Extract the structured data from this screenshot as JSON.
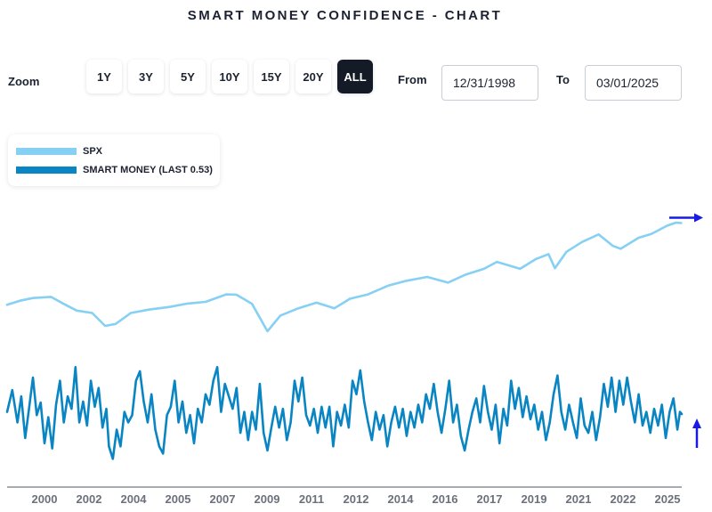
{
  "title": "SMART MONEY CONFIDENCE - CHART",
  "zoom": {
    "label": "Zoom",
    "buttons": [
      "1Y",
      "3Y",
      "5Y",
      "10Y",
      "15Y",
      "20Y",
      "ALL"
    ],
    "active": "ALL"
  },
  "range": {
    "from_label": "From",
    "from_value": "12/31/1998",
    "to_label": "To",
    "to_value": "03/01/2025"
  },
  "colors": {
    "spx": "#86d0f3",
    "smart_money": "#0a85c3",
    "arrow": "#1a1ae6",
    "axis": "#8a8f98"
  },
  "chart_data": {
    "type": "line",
    "title": "SMART MONEY CONFIDENCE - CHART",
    "legend": [
      "SPX",
      "SMART MONEY (LAST 0.53)"
    ],
    "legend_position": "top-left",
    "grid": false,
    "x_ticks": [
      "2000",
      "2002",
      "2004",
      "2005",
      "2007",
      "2009",
      "2011",
      "2012",
      "2014",
      "2016",
      "2017",
      "2019",
      "2021",
      "2022",
      "2025"
    ],
    "x_range": [
      "1998-12-31",
      "2025-03-01"
    ],
    "series": [
      {
        "name": "SPX",
        "axis": "upper",
        "points": [
          [
            1999.0,
            1230
          ],
          [
            1999.5,
            1330
          ],
          [
            2000.0,
            1400
          ],
          [
            2000.7,
            1430
          ],
          [
            2001.2,
            1250
          ],
          [
            2001.7,
            1100
          ],
          [
            2002.3,
            1050
          ],
          [
            2002.8,
            820
          ],
          [
            2003.2,
            850
          ],
          [
            2003.8,
            1050
          ],
          [
            2004.5,
            1120
          ],
          [
            2005.3,
            1180
          ],
          [
            2006.0,
            1260
          ],
          [
            2006.7,
            1300
          ],
          [
            2007.5,
            1500
          ],
          [
            2007.9,
            1490
          ],
          [
            2008.5,
            1250
          ],
          [
            2009.1,
            740
          ],
          [
            2009.6,
            1000
          ],
          [
            2010.3,
            1150
          ],
          [
            2011.0,
            1280
          ],
          [
            2011.7,
            1150
          ],
          [
            2012.3,
            1380
          ],
          [
            2013.0,
            1500
          ],
          [
            2013.8,
            1780
          ],
          [
            2014.5,
            1950
          ],
          [
            2015.3,
            2100
          ],
          [
            2016.1,
            1880
          ],
          [
            2016.8,
            2200
          ],
          [
            2017.5,
            2450
          ],
          [
            2018.0,
            2800
          ],
          [
            2018.9,
            2450
          ],
          [
            2019.5,
            2950
          ],
          [
            2020.0,
            3250
          ],
          [
            2020.25,
            2480
          ],
          [
            2020.7,
            3400
          ],
          [
            2021.3,
            4100
          ],
          [
            2021.95,
            4750
          ],
          [
            2022.5,
            3800
          ],
          [
            2022.8,
            3600
          ],
          [
            2023.5,
            4450
          ],
          [
            2024.0,
            4800
          ],
          [
            2024.6,
            5600
          ],
          [
            2024.95,
            5950
          ],
          [
            2025.15,
            5900
          ]
        ]
      },
      {
        "name": "SMART MONEY (LAST 0.53)",
        "axis": "lower",
        "points": [
          [
            1999.0,
            0.55
          ],
          [
            1999.2,
            0.76
          ],
          [
            1999.4,
            0.45
          ],
          [
            1999.55,
            0.7
          ],
          [
            1999.7,
            0.3
          ],
          [
            1999.85,
            0.58
          ],
          [
            2000.0,
            0.88
          ],
          [
            2000.15,
            0.52
          ],
          [
            2000.3,
            0.64
          ],
          [
            2000.45,
            0.25
          ],
          [
            2000.6,
            0.5
          ],
          [
            2000.75,
            0.2
          ],
          [
            2000.9,
            0.62
          ],
          [
            2001.05,
            0.85
          ],
          [
            2001.2,
            0.45
          ],
          [
            2001.35,
            0.7
          ],
          [
            2001.5,
            0.58
          ],
          [
            2001.65,
            0.98
          ],
          [
            2001.8,
            0.45
          ],
          [
            2001.95,
            0.65
          ],
          [
            2002.1,
            0.42
          ],
          [
            2002.25,
            0.85
          ],
          [
            2002.4,
            0.6
          ],
          [
            2002.55,
            0.78
          ],
          [
            2002.7,
            0.4
          ],
          [
            2002.85,
            0.58
          ],
          [
            2002.95,
            0.22
          ],
          [
            2003.1,
            0.1
          ],
          [
            2003.25,
            0.38
          ],
          [
            2003.4,
            0.22
          ],
          [
            2003.55,
            0.55
          ],
          [
            2003.7,
            0.45
          ],
          [
            2003.85,
            0.52
          ],
          [
            2004.0,
            0.85
          ],
          [
            2004.15,
            0.94
          ],
          [
            2004.3,
            0.65
          ],
          [
            2004.45,
            0.45
          ],
          [
            2004.6,
            0.72
          ],
          [
            2004.75,
            0.38
          ],
          [
            2004.9,
            0.22
          ],
          [
            2005.05,
            0.15
          ],
          [
            2005.2,
            0.52
          ],
          [
            2005.35,
            0.6
          ],
          [
            2005.5,
            0.85
          ],
          [
            2005.65,
            0.45
          ],
          [
            2005.8,
            0.65
          ],
          [
            2005.95,
            0.35
          ],
          [
            2006.1,
            0.52
          ],
          [
            2006.25,
            0.25
          ],
          [
            2006.4,
            0.58
          ],
          [
            2006.55,
            0.45
          ],
          [
            2006.7,
            0.72
          ],
          [
            2006.85,
            0.62
          ],
          [
            2007.0,
            0.85
          ],
          [
            2007.15,
            0.98
          ],
          [
            2007.3,
            0.55
          ],
          [
            2007.45,
            0.82
          ],
          [
            2007.6,
            0.7
          ],
          [
            2007.75,
            0.58
          ],
          [
            2007.9,
            0.78
          ],
          [
            2008.05,
            0.35
          ],
          [
            2008.2,
            0.55
          ],
          [
            2008.35,
            0.28
          ],
          [
            2008.5,
            0.55
          ],
          [
            2008.65,
            0.38
          ],
          [
            2008.8,
            0.82
          ],
          [
            2008.95,
            0.35
          ],
          [
            2009.1,
            0.18
          ],
          [
            2009.25,
            0.4
          ],
          [
            2009.4,
            0.6
          ],
          [
            2009.55,
            0.4
          ],
          [
            2009.7,
            0.58
          ],
          [
            2009.85,
            0.28
          ],
          [
            2010.0,
            0.45
          ],
          [
            2010.15,
            0.85
          ],
          [
            2010.3,
            0.65
          ],
          [
            2010.45,
            0.88
          ],
          [
            2010.6,
            0.52
          ],
          [
            2010.75,
            0.42
          ],
          [
            2010.9,
            0.58
          ],
          [
            2011.05,
            0.35
          ],
          [
            2011.2,
            0.6
          ],
          [
            2011.35,
            0.4
          ],
          [
            2011.5,
            0.6
          ],
          [
            2011.65,
            0.22
          ],
          [
            2011.8,
            0.55
          ],
          [
            2011.95,
            0.42
          ],
          [
            2012.1,
            0.62
          ],
          [
            2012.25,
            0.4
          ],
          [
            2012.4,
            0.85
          ],
          [
            2012.55,
            0.72
          ],
          [
            2012.7,
            0.95
          ],
          [
            2012.85,
            0.65
          ],
          [
            2013.0,
            0.45
          ],
          [
            2013.15,
            0.28
          ],
          [
            2013.3,
            0.55
          ],
          [
            2013.45,
            0.38
          ],
          [
            2013.6,
            0.52
          ],
          [
            2013.75,
            0.22
          ],
          [
            2013.9,
            0.45
          ],
          [
            2014.05,
            0.6
          ],
          [
            2014.2,
            0.4
          ],
          [
            2014.35,
            0.58
          ],
          [
            2014.5,
            0.32
          ],
          [
            2014.65,
            0.55
          ],
          [
            2014.8,
            0.4
          ],
          [
            2014.95,
            0.62
          ],
          [
            2015.1,
            0.45
          ],
          [
            2015.25,
            0.72
          ],
          [
            2015.4,
            0.58
          ],
          [
            2015.55,
            0.82
          ],
          [
            2015.7,
            0.55
          ],
          [
            2015.85,
            0.35
          ],
          [
            2016.0,
            0.58
          ],
          [
            2016.15,
            0.85
          ],
          [
            2016.3,
            0.45
          ],
          [
            2016.45,
            0.62
          ],
          [
            2016.6,
            0.32
          ],
          [
            2016.75,
            0.18
          ],
          [
            2016.9,
            0.38
          ],
          [
            2017.05,
            0.55
          ],
          [
            2017.2,
            0.68
          ],
          [
            2017.35,
            0.45
          ],
          [
            2017.5,
            0.8
          ],
          [
            2017.65,
            0.55
          ],
          [
            2017.8,
            0.38
          ],
          [
            2017.95,
            0.62
          ],
          [
            2018.1,
            0.25
          ],
          [
            2018.25,
            0.58
          ],
          [
            2018.4,
            0.42
          ],
          [
            2018.55,
            0.85
          ],
          [
            2018.7,
            0.58
          ],
          [
            2018.85,
            0.78
          ],
          [
            2019.0,
            0.5
          ],
          [
            2019.15,
            0.7
          ],
          [
            2019.3,
            0.48
          ],
          [
            2019.45,
            0.62
          ],
          [
            2019.6,
            0.38
          ],
          [
            2019.75,
            0.55
          ],
          [
            2019.9,
            0.28
          ],
          [
            2020.05,
            0.45
          ],
          [
            2020.2,
            0.72
          ],
          [
            2020.35,
            0.9
          ],
          [
            2020.5,
            0.55
          ],
          [
            2020.65,
            0.38
          ],
          [
            2020.8,
            0.62
          ],
          [
            2020.95,
            0.45
          ],
          [
            2021.1,
            0.3
          ],
          [
            2021.25,
            0.68
          ],
          [
            2021.4,
            0.42
          ],
          [
            2021.55,
            0.35
          ],
          [
            2021.7,
            0.55
          ],
          [
            2021.85,
            0.28
          ],
          [
            2022.0,
            0.5
          ],
          [
            2022.15,
            0.82
          ],
          [
            2022.3,
            0.6
          ],
          [
            2022.45,
            0.88
          ],
          [
            2022.6,
            0.55
          ],
          [
            2022.75,
            0.85
          ],
          [
            2022.9,
            0.62
          ],
          [
            2023.05,
            0.88
          ],
          [
            2023.2,
            0.65
          ],
          [
            2023.35,
            0.45
          ],
          [
            2023.5,
            0.72
          ],
          [
            2023.65,
            0.42
          ],
          [
            2023.8,
            0.55
          ],
          [
            2023.95,
            0.35
          ],
          [
            2024.1,
            0.58
          ],
          [
            2024.25,
            0.42
          ],
          [
            2024.4,
            0.62
          ],
          [
            2024.55,
            0.3
          ],
          [
            2024.7,
            0.55
          ],
          [
            2024.85,
            0.68
          ],
          [
            2025.0,
            0.38
          ],
          [
            2025.1,
            0.55
          ],
          [
            2025.17,
            0.53
          ]
        ]
      }
    ]
  }
}
